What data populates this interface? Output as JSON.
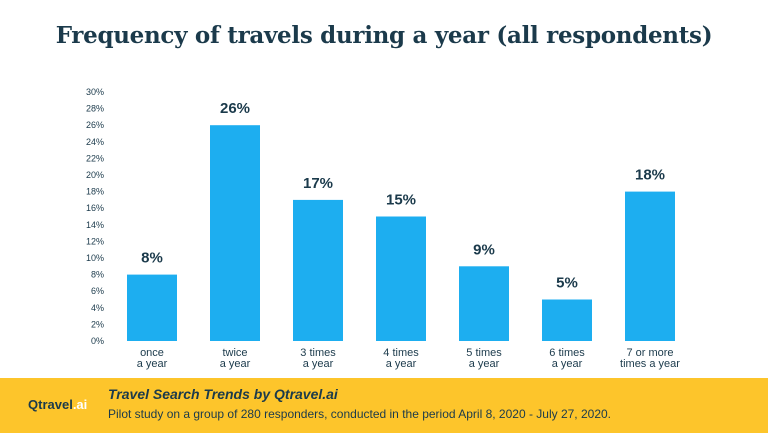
{
  "chart_data": {
    "type": "bar",
    "title": "Frequency of travels during a year (all respondents)",
    "categories": [
      [
        "once",
        "a year"
      ],
      [
        "twice",
        "a year"
      ],
      [
        "3 times",
        "a year"
      ],
      [
        "4 times",
        "a year"
      ],
      [
        "5 times",
        "a year"
      ],
      [
        "6 times",
        "a year"
      ],
      [
        "7 or more",
        "times a year"
      ]
    ],
    "values": [
      8,
      26,
      17,
      15,
      9,
      5,
      18
    ],
    "data_labels": [
      "8%",
      "26%",
      "17%",
      "15%",
      "9%",
      "5%",
      "18%"
    ],
    "ylim": [
      0,
      30
    ],
    "y_ticks": [
      "0%",
      "2%",
      "4%",
      "6%",
      "8%",
      "10%",
      "12%",
      "14%",
      "16%",
      "18%",
      "20%",
      "22%",
      "24%",
      "26%",
      "28%",
      "30%"
    ],
    "bar_color": "#1daef0",
    "grid": false,
    "legend": "none"
  },
  "footer": {
    "brand": "Qtravel",
    "brand_suffix": ".ai",
    "title": "Travel Search Trends by Qtravel.ai",
    "subtitle": "Pilot study on a group of 280 responders, conducted in the period April 8, 2020 - July 27, 2020."
  },
  "colors": {
    "footer_bg": "#fdc52b",
    "text_dark": "#1b3a4b",
    "bar": "#1daef0"
  }
}
